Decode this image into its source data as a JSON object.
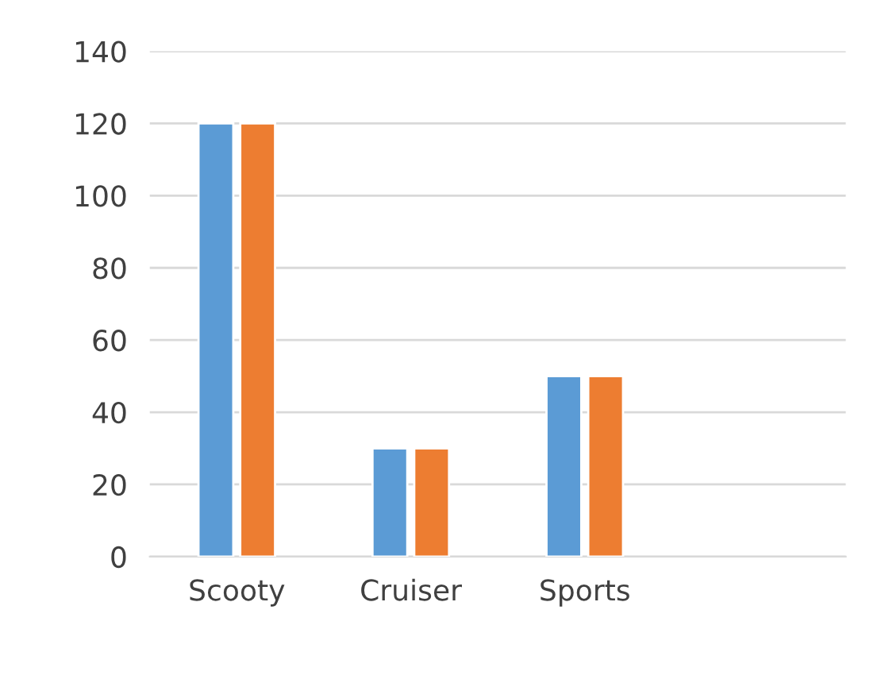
{
  "chart_data": {
    "type": "bar",
    "categories": [
      "Scooty",
      "Cruiser",
      "Sports",
      null
    ],
    "series": [
      {
        "color": "#5b9bd5",
        "values": [
          120,
          30,
          50,
          null
        ]
      },
      {
        "color": "#ed7d31",
        "values": [
          120,
          30,
          50,
          null
        ]
      }
    ],
    "ylim": [
      0,
      140
    ],
    "yticks": [
      0,
      20,
      40,
      60,
      80,
      100,
      120,
      140
    ],
    "grid": "y",
    "legend": false
  }
}
